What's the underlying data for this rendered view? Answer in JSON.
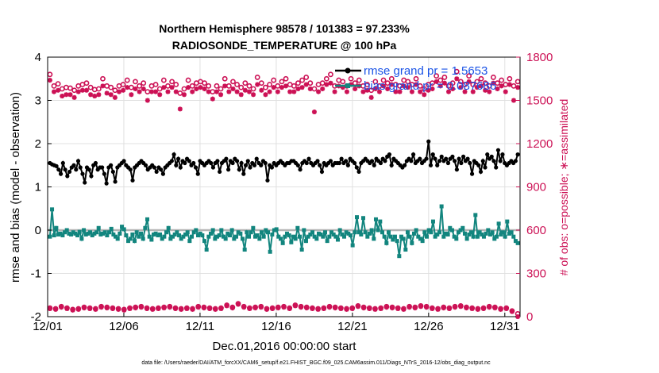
{
  "chart_data": {
    "type": "line",
    "title_line1": "Northern Hemisphere 98578 / 101383 = 97.233%",
    "title_line2": "RADIOSONDE_TEMPERATURE @ 100 hPa",
    "xlabel": "Dec.01,2016 00:00:00 start",
    "ylabel_left": "rmse and bias (model - observation)",
    "ylabel_right": "# of obs: o=possible; ∗=assimilated",
    "footnote": "data file: /Users/raeder/DAI/ATM_forcXX/CAM6_setup/f.e21.FHIST_BGC.f09_025.CAM6assim.011/Diags_NTrS_2016-12/obs_diag_output.nc",
    "x_range": [
      1,
      32
    ],
    "x_ticks": [
      1,
      6,
      11,
      16,
      21,
      26,
      31
    ],
    "x_tick_labels": [
      "12/01",
      "12/06",
      "12/11",
      "12/16",
      "12/21",
      "12/26",
      "12/31"
    ],
    "ylim_left": [
      -2,
      4
    ],
    "y_ticks_left": [
      -2,
      -1,
      0,
      1,
      2,
      3,
      4
    ],
    "y_tick_labels_left": [
      "-2",
      "-1",
      "0",
      "1",
      "2",
      "3",
      "4"
    ],
    "ylim_right": [
      0,
      1800
    ],
    "y_ticks_right": [
      0,
      300,
      600,
      900,
      1200,
      1500,
      1800
    ],
    "y_tick_labels_right": [
      "0",
      "300",
      "600",
      "900",
      "1200",
      "1500",
      "1800"
    ],
    "legend": {
      "rmse_label": "rmse grand pr = 1.5653",
      "bias_label": "bias grand pr = 0.087686"
    },
    "colors": {
      "rmse": "#000000",
      "bias": "#12857e",
      "obs": "#cc1155",
      "zero_line": "#b4b4b4",
      "legend_text": "#1a53e6",
      "grid": "#e0e0e0"
    },
    "series_rmse": [
      1.55,
      1.52,
      1.5,
      1.48,
      1.4,
      1.3,
      1.55,
      1.4,
      1.25,
      1.35,
      1.45,
      1.5,
      1.4,
      1.6,
      1.45,
      1.3,
      1.1,
      1.45,
      1.4,
      1.25,
      1.5,
      1.55,
      1.4,
      1.45,
      1.45,
      1.3,
      1.08,
      1.45,
      1.5,
      1.35,
      1.12,
      1.45,
      1.5,
      1.55,
      1.6,
      1.5,
      1.45,
      1.4,
      1.15,
      1.45,
      1.5,
      1.55,
      1.6,
      1.55,
      1.5,
      1.4,
      1.45,
      1.5,
      1.45,
      1.35,
      1.45,
      1.4,
      1.3,
      1.45,
      1.5,
      1.55,
      1.6,
      1.75,
      1.5,
      1.65,
      1.45,
      1.6,
      1.55,
      1.65,
      1.6,
      1.5,
      1.55,
      1.45,
      1.3,
      1.6,
      1.55,
      1.5,
      1.55,
      1.6,
      1.55,
      1.45,
      1.55,
      1.6,
      1.35,
      1.55,
      1.6,
      1.65,
      1.4,
      1.6,
      1.55,
      1.65,
      1.6,
      1.4,
      1.55,
      1.3,
      1.5,
      1.6,
      1.45,
      1.55,
      1.5,
      1.65,
      1.55,
      1.5,
      1.6,
      1.55,
      1.15,
      1.5,
      1.45,
      1.55,
      1.5,
      1.55,
      1.6,
      1.55,
      1.5,
      1.55,
      1.55,
      1.6,
      1.6,
      1.55,
      1.5,
      1.4,
      1.55,
      1.6,
      1.55,
      1.65,
      1.55,
      1.5,
      1.55,
      1.6,
      1.5,
      1.35,
      1.55,
      1.5,
      1.55,
      1.6,
      1.5,
      1.55,
      1.55,
      1.55,
      1.65,
      1.55,
      1.6,
      1.5,
      1.65,
      1.6,
      1.55,
      1.45,
      1.35,
      1.55,
      1.6,
      1.65,
      1.6,
      1.55,
      1.6,
      1.5,
      1.65,
      1.6,
      1.55,
      1.65,
      1.6,
      1.7,
      1.75,
      1.5,
      1.65,
      1.6,
      1.55,
      1.5,
      1.45,
      1.5,
      1.6,
      1.65,
      1.6,
      1.75,
      1.55,
      1.6,
      1.65,
      1.55,
      1.6,
      1.65,
      2.05,
      1.5,
      1.75,
      1.65,
      1.5,
      1.6,
      1.7,
      1.6,
      1.65,
      1.55,
      1.65,
      1.7,
      1.6,
      1.4,
      1.65,
      1.55,
      1.7,
      1.6,
      1.65,
      1.55,
      1.3,
      1.6,
      1.55,
      1.5,
      1.35,
      1.6,
      1.45,
      1.75,
      1.65,
      1.7,
      1.6,
      1.45,
      1.85,
      1.6,
      1.75,
      1.55,
      1.5,
      1.55,
      1.6,
      1.55,
      1.6,
      1.75
    ],
    "series_bias": [
      -0.15,
      0.48,
      -0.12,
      0.05,
      -0.1,
      -0.08,
      -0.12,
      -0.05,
      0.0,
      -0.08,
      -0.1,
      -0.05,
      -0.08,
      -0.12,
      -0.04,
      -0.2,
      0.0,
      -0.1,
      -0.08,
      -0.05,
      -0.12,
      -0.08,
      -0.05,
      0.05,
      -0.1,
      -0.08,
      -0.05,
      -0.12,
      -0.05,
      0.03,
      -0.1,
      -0.15,
      -0.2,
      -0.08,
      0.08,
      0.02,
      -0.12,
      -0.25,
      -0.2,
      -0.1,
      -0.25,
      -0.05,
      -0.15,
      -0.08,
      -0.2,
      0.05,
      0.25,
      -0.15,
      -0.22,
      -0.1,
      -0.08,
      -0.12,
      -0.1,
      -0.2,
      -0.15,
      -0.05,
      0.05,
      -0.2,
      -0.15,
      -0.1,
      -0.05,
      -0.12,
      -0.2,
      -0.15,
      -0.1,
      -0.05,
      -0.25,
      -0.15,
      -0.05,
      0.0,
      -0.12,
      -0.08,
      -0.12,
      -0.25,
      -0.45,
      -0.15,
      -0.08,
      0.0,
      -0.2,
      -0.15,
      -0.12,
      0.0,
      -0.15,
      -0.2,
      -0.08,
      -0.12,
      0.0,
      -0.2,
      -0.15,
      -0.05,
      -0.08,
      -0.2,
      -0.45,
      -0.05,
      -0.15,
      -0.05,
      0.05,
      -0.15,
      -0.12,
      -0.2,
      -0.05,
      -0.15,
      0.0,
      -0.05,
      -0.5,
      -0.1,
      0.0,
      0.02,
      -0.15,
      -0.2,
      -0.3,
      -0.15,
      -0.08,
      -0.12,
      -0.28,
      -0.15,
      -0.2,
      0.05,
      -0.15,
      -0.45,
      0.0,
      -0.25,
      -0.15,
      -0.1,
      -0.05,
      -0.15,
      -0.2,
      -0.08,
      -0.1,
      -0.15,
      -0.05,
      -0.25,
      -0.15,
      -0.05,
      -0.1,
      -0.15,
      -0.22,
      0.0,
      -0.1,
      -0.15,
      -0.05,
      -0.08,
      -0.12,
      -0.35,
      -0.05,
      0.3,
      -0.05,
      -0.1,
      0.28,
      -0.05,
      -0.15,
      -0.08,
      0.0,
      -0.2,
      0.25,
      0.0,
      0.2,
      -0.05,
      -0.15,
      -0.3,
      -0.05,
      -0.15,
      -0.22,
      -0.15,
      -0.25,
      -0.6,
      -0.15,
      -0.2,
      -0.45,
      -0.05,
      -0.15,
      -0.3,
      -0.08,
      0.0,
      -0.15,
      -0.2,
      -0.25,
      -0.05,
      -0.15,
      0.0,
      -0.05,
      0.2,
      -0.15,
      -0.1,
      -0.05,
      0.55,
      -0.15,
      -0.08,
      -0.1,
      0.05,
      0.0,
      -0.15,
      -0.2,
      -0.05,
      0.0,
      0.05,
      -0.08,
      -0.2,
      -0.1,
      -0.05,
      -0.15,
      0.35,
      -0.15,
      -0.05,
      -0.1,
      -0.15,
      -0.08,
      0.0,
      -0.1,
      -0.05,
      -0.2,
      -0.15,
      0.15,
      -0.1,
      -0.05,
      -0.15,
      0.2,
      -0.08,
      -0.05,
      -0.15,
      -0.25,
      -0.3
    ],
    "series_possible": [
      1680,
      1600,
      1615,
      1580,
      1590,
      1585,
      1570,
      1600,
      1610,
      1620,
      1590,
      1575,
      1580,
      1650,
      1600,
      1590,
      1570,
      1600,
      1610,
      1640,
      1590,
      1630,
      1600,
      1620,
      1560,
      1600,
      1610,
      1580,
      1640,
      1600,
      1630,
      1610,
      1550,
      1580,
      1640,
      1600,
      1620,
      1630,
      1620,
      1600,
      1560,
      1600,
      1580,
      1650,
      1600,
      1630,
      1610,
      1590,
      1620,
      1600,
      1580,
      1660,
      1620,
      1590,
      1610,
      1640,
      1600,
      1630,
      1650,
      1610,
      1600,
      1620,
      1640,
      1660,
      1620,
      1580,
      1610,
      1620,
      1650,
      1680,
      1600,
      1640,
      1630,
      1600,
      1650,
      1620,
      1640,
      1600,
      1610,
      1570,
      1630,
      1600,
      1640,
      1620,
      1650,
      1610,
      1600,
      1640,
      1630,
      1610,
      1650,
      1600,
      1580,
      1610,
      1620,
      1670,
      1640,
      1660,
      1600,
      1620,
      1700,
      1630,
      1610,
      1670,
      1610,
      1630,
      1650,
      1620,
      1600,
      1660,
      1620,
      1640,
      1610,
      1650,
      1600,
      1630
    ],
    "series_assimilated": [
      1640,
      1560,
      1570,
      1530,
      1540,
      1540,
      1520,
      1560,
      1570,
      1570,
      1540,
      1530,
      1540,
      1600,
      1550,
      1540,
      1520,
      1560,
      1570,
      1590,
      1540,
      1580,
      1560,
      1580,
      1500,
      1560,
      1560,
      1540,
      1590,
      1560,
      1590,
      1560,
      1440,
      1540,
      1590,
      1560,
      1580,
      1590,
      1580,
      1560,
      1510,
      1560,
      1540,
      1600,
      1560,
      1580,
      1560,
      1540,
      1570,
      1560,
      1540,
      1610,
      1570,
      1540,
      1560,
      1590,
      1560,
      1590,
      1600,
      1560,
      1560,
      1580,
      1590,
      1610,
      1580,
      1420,
      1560,
      1580,
      1610,
      1620,
      1560,
      1600,
      1590,
      1560,
      1610,
      1580,
      1600,
      1560,
      1570,
      1520,
      1580,
      1560,
      1600,
      1580,
      1610,
      1560,
      1560,
      1600,
      1590,
      1560,
      1610,
      1560,
      1540,
      1570,
      1580,
      1630,
      1600,
      1620,
      1560,
      1580,
      1650,
      1590,
      1560,
      1630,
      1560,
      1590,
      1600,
      1570,
      1560,
      1620,
      1580,
      1600,
      1560,
      1610,
      1500,
      1590
    ],
    "series_low_possible": [
      60,
      55,
      70,
      60,
      50,
      55,
      65,
      60,
      55,
      70,
      65,
      60,
      55,
      50,
      60,
      65,
      70,
      60,
      55,
      60,
      65,
      70,
      60,
      55,
      60,
      55,
      70,
      65,
      60,
      55,
      60,
      80,
      65,
      90,
      70,
      60,
      65,
      70,
      55,
      60,
      65,
      70,
      60,
      80,
      70,
      65,
      60,
      55,
      60,
      70,
      65,
      60,
      55,
      60,
      75,
      65,
      60,
      55,
      60,
      70,
      65,
      60,
      55,
      70,
      65,
      75,
      70,
      60,
      55,
      65,
      60,
      70,
      75,
      65,
      60,
      55,
      60,
      70,
      65,
      55,
      60,
      40,
      20
    ],
    "series_low_assimilated": [
      55,
      50,
      65,
      55,
      45,
      50,
      60,
      55,
      50,
      65,
      60,
      55,
      50,
      45,
      55,
      60,
      65,
      55,
      50,
      55,
      60,
      65,
      55,
      50,
      55,
      50,
      65,
      60,
      55,
      50,
      55,
      75,
      60,
      85,
      65,
      55,
      60,
      65,
      50,
      55,
      60,
      65,
      55,
      75,
      65,
      60,
      55,
      50,
      55,
      65,
      60,
      55,
      50,
      55,
      70,
      60,
      55,
      50,
      55,
      65,
      60,
      55,
      50,
      65,
      60,
      70,
      65,
      55,
      50,
      60,
      55,
      65,
      70,
      60,
      55,
      50,
      55,
      65,
      60,
      50,
      55,
      35,
      0
    ]
  }
}
